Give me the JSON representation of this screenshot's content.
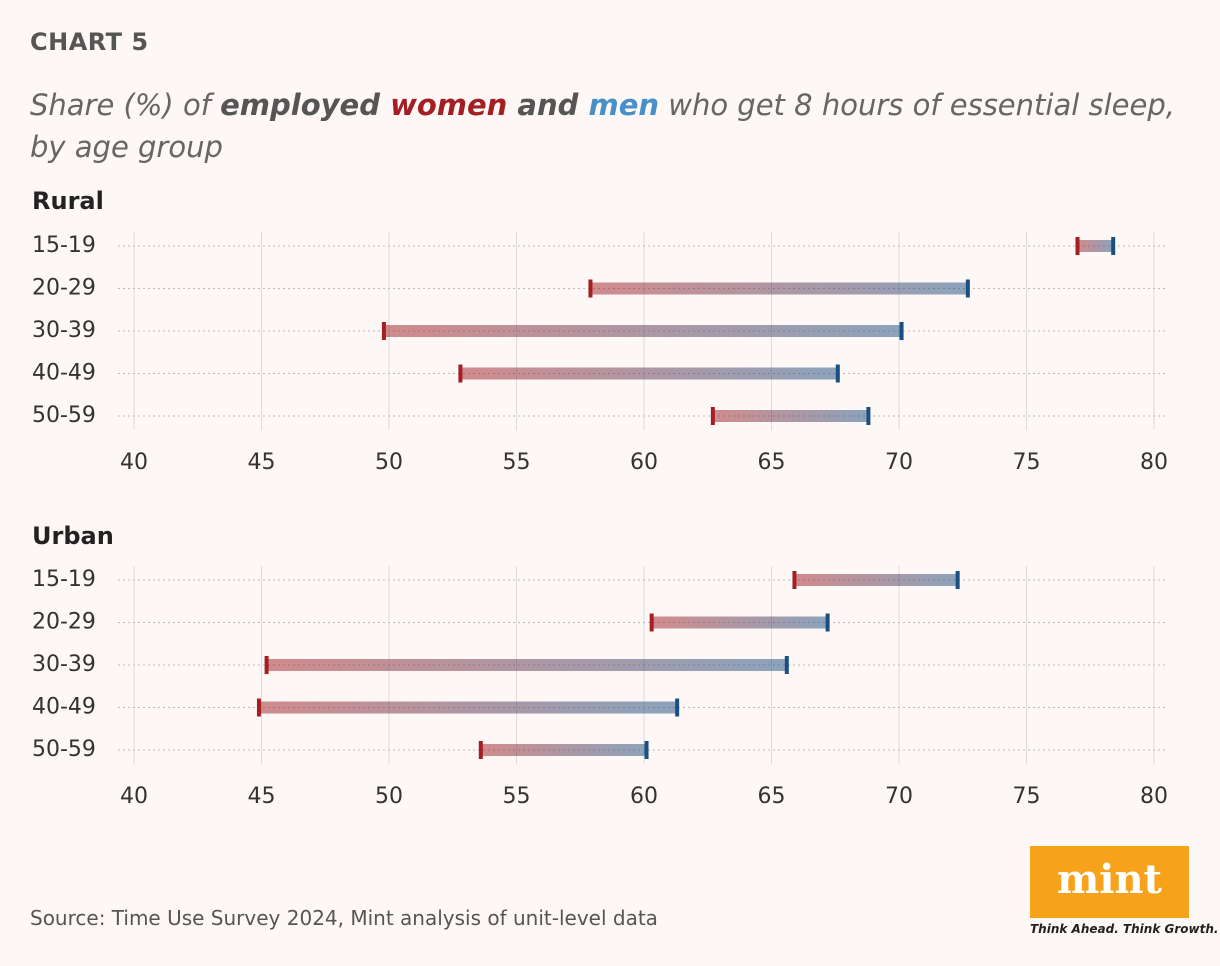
{
  "header": {
    "label": "CHART 5",
    "title_parts": [
      "Share (%) of ",
      "employed ",
      " and ",
      " who get 8 hours of essential sleep, by age group"
    ]
  },
  "chart_data": [
    {
      "type": "dumbbell",
      "title": "Rural",
      "categories": [
        "15-19",
        "20-29",
        "30-39",
        "40-49",
        "50-59"
      ],
      "series": [
        {
          "name": "women",
          "color": "#a31f24",
          "values": [
            77.0,
            57.9,
            49.8,
            52.8,
            62.7
          ]
        },
        {
          "name": "men",
          "color": "#1b4f82",
          "values": [
            78.4,
            72.7,
            70.1,
            67.6,
            68.8
          ]
        }
      ],
      "xlim": [
        40,
        80
      ],
      "xticks": [
        40,
        45,
        50,
        55,
        60,
        65,
        70,
        75,
        80
      ],
      "grid": true
    },
    {
      "type": "dumbbell",
      "title": "Urban",
      "categories": [
        "15-19",
        "20-29",
        "30-39",
        "40-49",
        "50-59"
      ],
      "series": [
        {
          "name": "women",
          "color": "#a31f24",
          "values": [
            65.9,
            60.3,
            45.2,
            44.9,
            53.6
          ]
        },
        {
          "name": "men",
          "color": "#1b4f82",
          "values": [
            72.3,
            67.2,
            65.6,
            61.3,
            60.1
          ]
        }
      ],
      "xlim": [
        40,
        80
      ],
      "xticks": [
        40,
        45,
        50,
        55,
        60,
        65,
        70,
        75,
        80
      ],
      "grid": true
    }
  ],
  "footer": {
    "source": "Source: Time Use Survey 2024, Mint analysis of unit-level data",
    "logo": "mint",
    "tagline": "Think Ahead. Think Growth."
  }
}
